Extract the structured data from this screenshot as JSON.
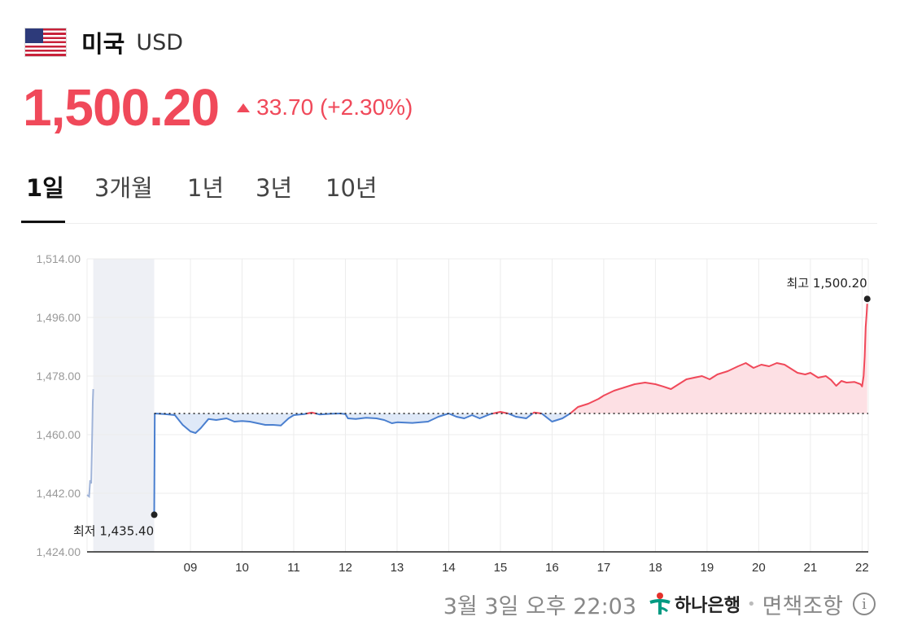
{
  "header": {
    "country": "미국",
    "currency": "USD"
  },
  "price": {
    "value": "1,500.20",
    "change": "33.70 (+2.30%)",
    "direction": "up"
  },
  "tabs": [
    {
      "label": "1일"
    },
    {
      "label": "3개월"
    },
    {
      "label": "1년"
    },
    {
      "label": "3년"
    },
    {
      "label": "10년"
    }
  ],
  "colors": {
    "up": "#f0495a",
    "down": "#4a7fcf",
    "up_fill": "#fde0e4",
    "down_fill": "#dfe9f8",
    "grid": "#ececec",
    "overnight_shade": "#eef0f5"
  },
  "footer": {
    "date": "3월 3일 오후 22:03",
    "bank": "하나은행",
    "disclaimer": "면책조항"
  },
  "chart_data": {
    "type": "line",
    "ylim": [
      1424,
      1514
    ],
    "y_ticks": [
      "1,514.00",
      "1,496.00",
      "1,478.00",
      "1,460.00",
      "1,442.00",
      "1,424.00"
    ],
    "y_tick_values": [
      1514,
      1496,
      1478,
      1460,
      1442,
      1424
    ],
    "xlim": [
      7.0,
      22.12
    ],
    "x_ticks": [
      "09",
      "10",
      "11",
      "12",
      "13",
      "14",
      "15",
      "16",
      "17",
      "18",
      "19",
      "20",
      "21",
      "22"
    ],
    "x_tick_values": [
      9,
      10,
      11,
      12,
      13,
      14,
      15,
      16,
      17,
      18,
      19,
      20,
      21,
      22
    ],
    "baseline": 1466.5,
    "overnight_range": [
      7.12,
      8.3
    ],
    "premarket_series": [
      [
        7.0,
        1441.5
      ],
      [
        7.04,
        1441
      ],
      [
        7.06,
        1446
      ],
      [
        7.08,
        1445
      ],
      [
        7.1,
        1460
      ],
      [
        7.11,
        1470
      ],
      [
        7.12,
        1474
      ]
    ],
    "series": [
      [
        8.3,
        1435.4
      ],
      [
        8.31,
        1466.5
      ],
      [
        8.5,
        1466.3
      ],
      [
        8.7,
        1466.0
      ],
      [
        8.85,
        1463.0
      ],
      [
        9.0,
        1461.0
      ],
      [
        9.1,
        1460.5
      ],
      [
        9.2,
        1462.0
      ],
      [
        9.35,
        1464.8
      ],
      [
        9.5,
        1464.5
      ],
      [
        9.7,
        1465.0
      ],
      [
        9.85,
        1464.0
      ],
      [
        10.0,
        1464.2
      ],
      [
        10.15,
        1464.0
      ],
      [
        10.3,
        1463.5
      ],
      [
        10.45,
        1463.0
      ],
      [
        10.6,
        1463.0
      ],
      [
        10.75,
        1462.8
      ],
      [
        10.9,
        1465.0
      ],
      [
        11.0,
        1466.0
      ],
      [
        11.2,
        1466.3
      ],
      [
        11.35,
        1466.8
      ],
      [
        11.5,
        1466.2
      ],
      [
        11.7,
        1466.4
      ],
      [
        11.9,
        1466.5
      ],
      [
        12.0,
        1466.3
      ],
      [
        12.05,
        1465.0
      ],
      [
        12.2,
        1464.8
      ],
      [
        12.4,
        1465.2
      ],
      [
        12.6,
        1465.0
      ],
      [
        12.75,
        1464.5
      ],
      [
        12.9,
        1463.5
      ],
      [
        13.0,
        1463.8
      ],
      [
        13.3,
        1463.6
      ],
      [
        13.6,
        1464.0
      ],
      [
        13.8,
        1465.5
      ],
      [
        14.0,
        1466.5
      ],
      [
        14.15,
        1465.5
      ],
      [
        14.3,
        1465.0
      ],
      [
        14.45,
        1466.0
      ],
      [
        14.6,
        1465.0
      ],
      [
        14.8,
        1466.3
      ],
      [
        15.0,
        1467.0
      ],
      [
        15.15,
        1466.5
      ],
      [
        15.3,
        1465.5
      ],
      [
        15.5,
        1465.0
      ],
      [
        15.65,
        1466.8
      ],
      [
        15.8,
        1466.5
      ],
      [
        16.0,
        1464.0
      ],
      [
        16.2,
        1465.0
      ],
      [
        16.35,
        1466.5
      ],
      [
        16.5,
        1468.5
      ],
      [
        16.7,
        1469.5
      ],
      [
        16.9,
        1471.0
      ],
      [
        17.0,
        1472.0
      ],
      [
        17.2,
        1473.5
      ],
      [
        17.4,
        1474.5
      ],
      [
        17.6,
        1475.5
      ],
      [
        17.8,
        1476.0
      ],
      [
        18.0,
        1475.5
      ],
      [
        18.15,
        1474.8
      ],
      [
        18.3,
        1474.0
      ],
      [
        18.45,
        1475.5
      ],
      [
        18.6,
        1477.0
      ],
      [
        18.75,
        1477.5
      ],
      [
        18.9,
        1478.0
      ],
      [
        19.05,
        1477.0
      ],
      [
        19.2,
        1478.5
      ],
      [
        19.4,
        1479.5
      ],
      [
        19.6,
        1481.0
      ],
      [
        19.75,
        1482.0
      ],
      [
        19.9,
        1480.5
      ],
      [
        20.05,
        1481.5
      ],
      [
        20.2,
        1481.0
      ],
      [
        20.35,
        1482.0
      ],
      [
        20.5,
        1481.5
      ],
      [
        20.6,
        1480.5
      ],
      [
        20.75,
        1479.0
      ],
      [
        20.9,
        1478.5
      ],
      [
        21.0,
        1479.0
      ],
      [
        21.15,
        1477.5
      ],
      [
        21.3,
        1478.0
      ],
      [
        21.4,
        1476.8
      ],
      [
        21.5,
        1475.0
      ],
      [
        21.6,
        1476.5
      ],
      [
        21.7,
        1476.0
      ],
      [
        21.85,
        1476.2
      ],
      [
        21.97,
        1475.5
      ],
      [
        22.0,
        1474.8
      ],
      [
        22.03,
        1478.0
      ],
      [
        22.05,
        1484.0
      ],
      [
        22.07,
        1493.0
      ],
      [
        22.09,
        1497.5
      ],
      [
        22.1,
        1500.2
      ]
    ],
    "annotations": [
      {
        "label": "최고 1,500.20",
        "x": 22.1,
        "y": 1500.2
      },
      {
        "label": "최저 1,435.40",
        "x": 8.3,
        "y": 1435.4
      }
    ],
    "grid": true
  }
}
